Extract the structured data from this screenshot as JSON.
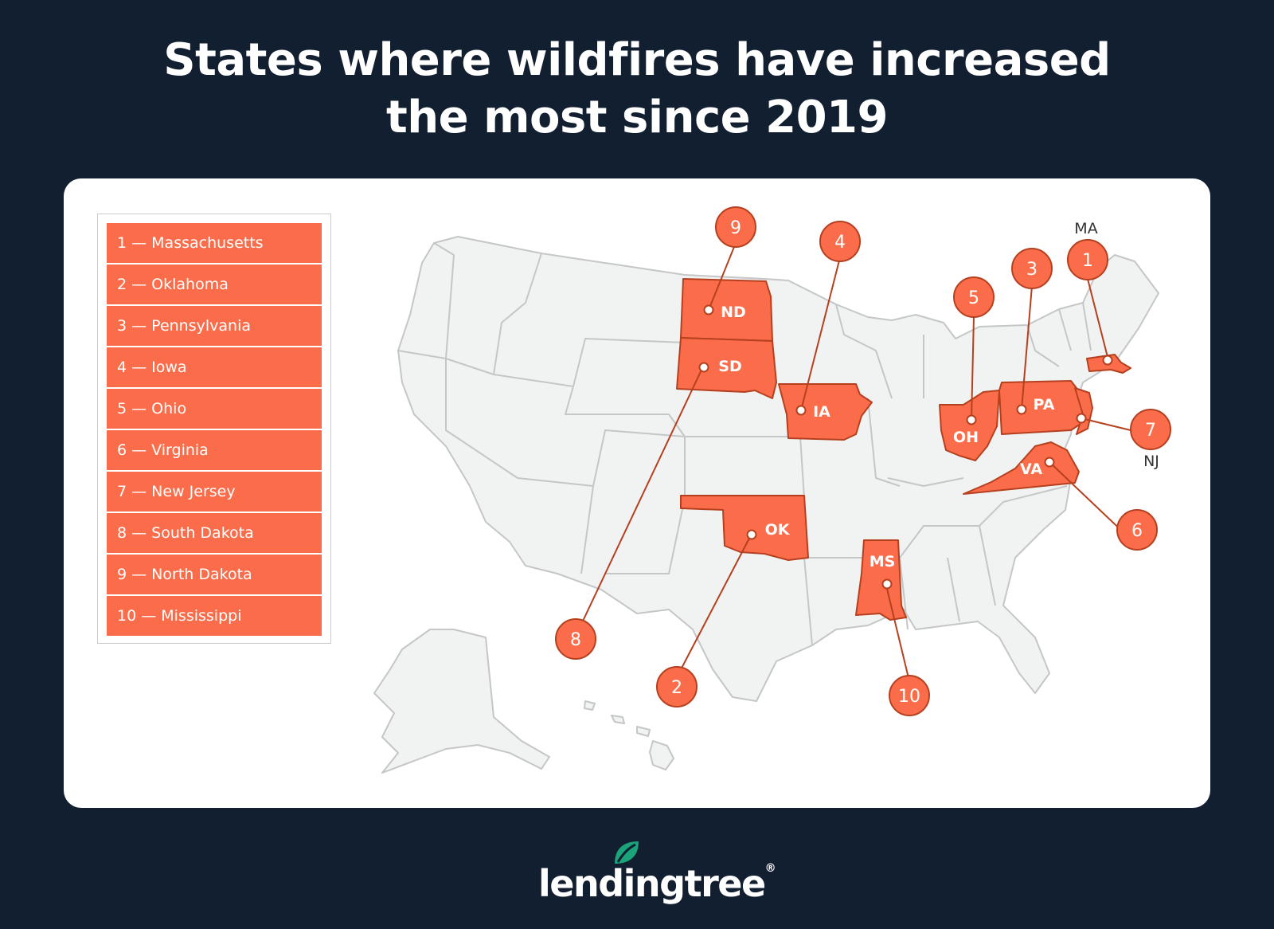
{
  "title": {
    "line1": "States where wildfires have increased",
    "line2": "the most since 2019"
  },
  "legend": [
    "1 — Massachusetts",
    "2 — Oklahoma",
    "3 — Pennsylvania",
    "4 — Iowa",
    "5 — Ohio",
    "6 — Virginia",
    "7 — New Jersey",
    "8 — South Dakota",
    "9 — North Dakota",
    "10 — Mississippi"
  ],
  "states": {
    "ND": "ND",
    "SD": "SD",
    "IA": "IA",
    "OH": "OH",
    "PA": "PA",
    "VA": "VA",
    "OK": "OK",
    "MS": "MS"
  },
  "outside_labels": {
    "MA": "MA",
    "NJ": "NJ"
  },
  "ranks": {
    "r1": "1",
    "r2": "2",
    "r3": "3",
    "r4": "4",
    "r5": "5",
    "r6": "6",
    "r7": "7",
    "r8": "8",
    "r9": "9",
    "r10": "10"
  },
  "brand": {
    "name": "lendingtree",
    "mark": "®"
  },
  "colors": {
    "background": "#121f31",
    "highlight": "#fb6d4a",
    "highlight_stroke": "#b5401f",
    "state_fill": "#f1f2f2",
    "state_stroke": "#c4c6c8",
    "leaf": "#1ba37a"
  }
}
